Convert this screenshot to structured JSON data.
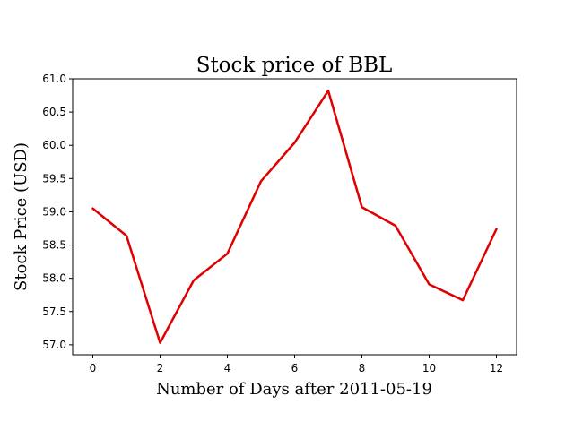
{
  "chart_data": {
    "type": "line",
    "title": "Stock price of BBL",
    "xlabel": "Number of Days after 2011-05-19",
    "ylabel": "Stock Price (USD)",
    "x": [
      0,
      1,
      2,
      3,
      4,
      5,
      6,
      7,
      8,
      9,
      10,
      11,
      12
    ],
    "series": [
      {
        "color": "#e00000",
        "values": [
          59.05,
          58.64,
          57.03,
          57.97,
          58.37,
          59.46,
          60.04,
          60.82,
          59.07,
          58.79,
          57.91,
          57.67,
          58.74
        ]
      }
    ],
    "xlim": [
      -0.6,
      12.6
    ],
    "ylim": [
      56.85,
      61.0
    ],
    "xticks": [
      0,
      2,
      4,
      6,
      8,
      10,
      12
    ],
    "xtick_labels": [
      "0",
      "2",
      "4",
      "6",
      "8",
      "10",
      "12"
    ],
    "yticks": [
      57.0,
      57.5,
      58.0,
      58.5,
      59.0,
      59.5,
      60.0,
      60.5,
      61.0
    ],
    "ytick_labels": [
      "57.0",
      "57.5",
      "58.0",
      "58.5",
      "59.0",
      "59.5",
      "60.0",
      "60.5",
      "61.0"
    ],
    "grid": false,
    "legend": "none"
  }
}
